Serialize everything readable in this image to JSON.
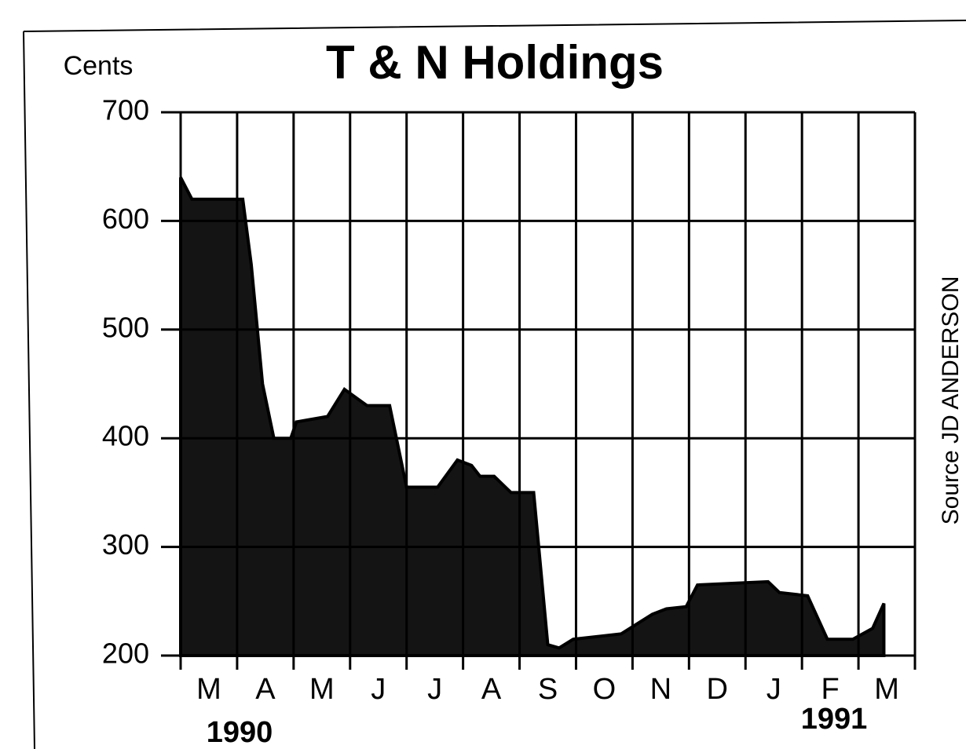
{
  "chart_data": {
    "type": "area",
    "title": "T & N Holdings",
    "y_label": "Cents",
    "source": "Source JD ANDERSON",
    "annotations": [
      "1990",
      "1991"
    ],
    "categories": [
      "M",
      "A",
      "M",
      "J",
      "J",
      "A",
      "S",
      "O",
      "N",
      "D",
      "J",
      "F",
      "M"
    ],
    "xlim": [
      0,
      13
    ],
    "ylim": [
      200,
      700
    ],
    "yticks": [
      200,
      300,
      400,
      500,
      600,
      700
    ],
    "grid": true,
    "color": "#141414",
    "x": [
      0,
      0.2,
      1.1,
      1.25,
      1.45,
      1.65,
      1.95,
      2.05,
      2.6,
      2.9,
      3.3,
      3.7,
      4.0,
      4.55,
      4.9,
      5.15,
      5.3,
      5.55,
      5.85,
      6.25,
      6.5,
      6.7,
      6.95,
      7.8,
      8.35,
      8.6,
      8.95,
      9.15,
      10.4,
      10.6,
      11.1,
      11.45,
      11.9,
      12.25,
      12.45
    ],
    "values": [
      640,
      620,
      620,
      560,
      450,
      400,
      400,
      415,
      420,
      445,
      430,
      430,
      355,
      355,
      380,
      375,
      365,
      365,
      350,
      350,
      210,
      207,
      215,
      220,
      238,
      243,
      245,
      265,
      268,
      258,
      255,
      215,
      215,
      225,
      248
    ]
  }
}
